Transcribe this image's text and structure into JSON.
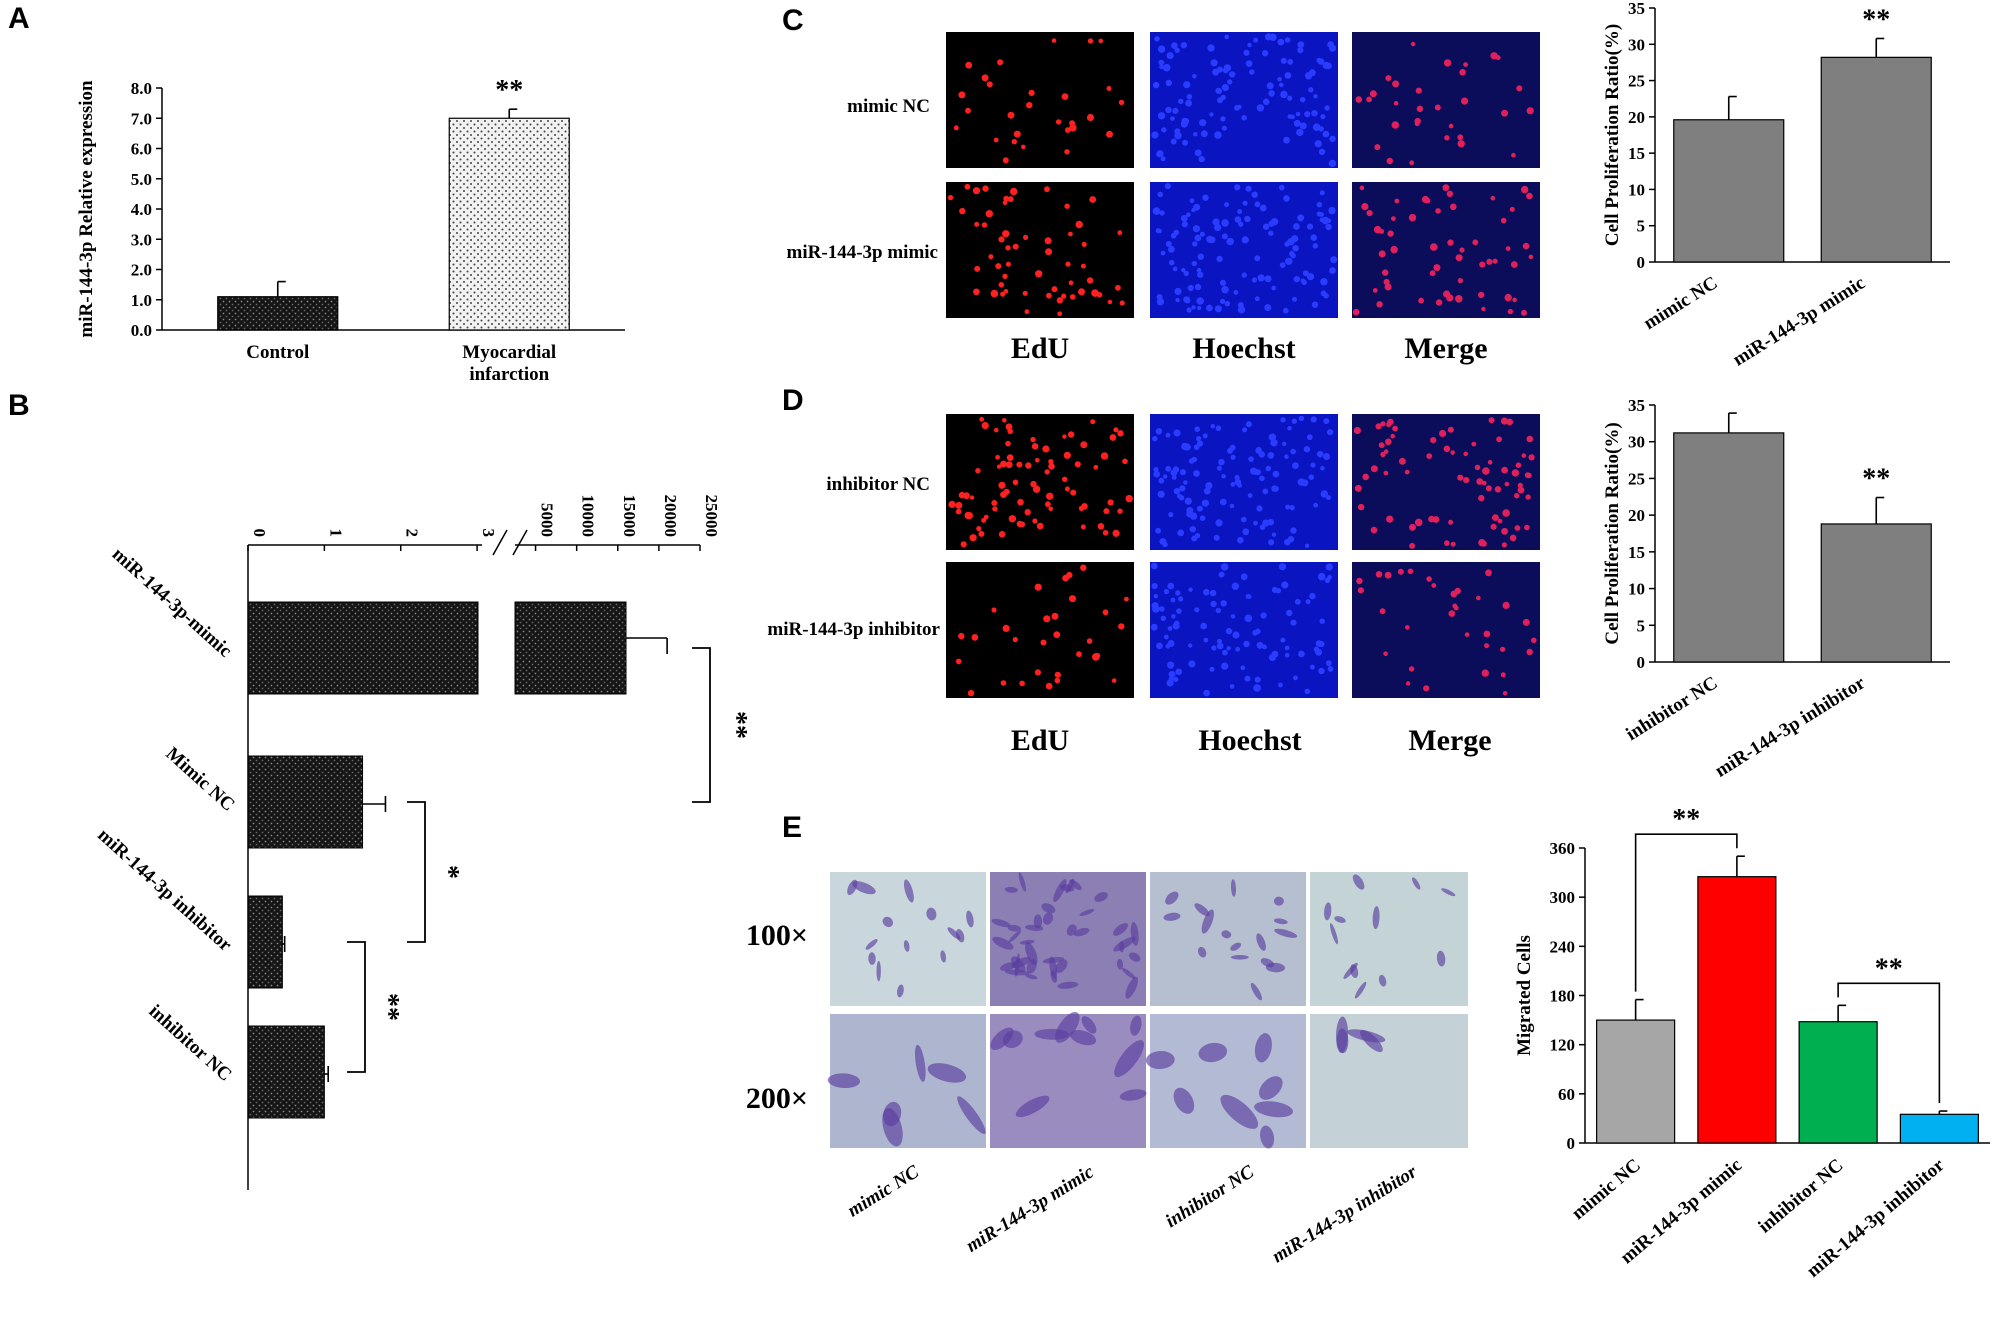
{
  "panels": {
    "A": {
      "label": "A"
    },
    "B": {
      "label": "B"
    },
    "C": {
      "label": "C",
      "row_labels": [
        "mimic  NC",
        "miR-144-3p mimic"
      ],
      "columns": [
        "EdU",
        "Hoechst",
        "Merge"
      ]
    },
    "D": {
      "label": "D",
      "row_labels": [
        "inhibitor NC",
        "miR-144-3p inhibitor"
      ],
      "columns": [
        "EdU",
        "Hoechst",
        "Merge"
      ]
    },
    "E": {
      "label": "E",
      "row_labels": [
        "100×",
        "200×"
      ],
      "columns": [
        "mimic NC",
        "miR-144-3p mimic",
        "inhibitor NC",
        "miR-144-3p inhibitor"
      ]
    }
  },
  "chart_data": [
    {
      "id": "A",
      "type": "bar",
      "categories": [
        "Control",
        "Myocardial infarction"
      ],
      "category_lines": [
        [
          "Control"
        ],
        [
          "Myocardial",
          "infarction"
        ]
      ],
      "values": [
        1.1,
        7.0
      ],
      "errors": [
        0.5,
        0.3
      ],
      "ylabel": "miR-144-3p Relative expression",
      "ylim": [
        0,
        8
      ],
      "yticks": [
        "0.0",
        "1.0",
        "2.0",
        "3.0",
        "4.0",
        "5.0",
        "6.0",
        "7.0",
        "8.0"
      ],
      "bar_colors": [
        "#1c1c1c",
        "#f2f2f2"
      ],
      "annotations": [
        {
          "text": "**",
          "category": "Myocardial infarction"
        }
      ]
    },
    {
      "id": "B",
      "type": "bar",
      "orientation": "horizontal, broken axis",
      "categories": [
        "miR-144-3p-mimic",
        "Mimic NC",
        "miR-144-3p inhibitor",
        "inhibitor NC"
      ],
      "values": [
        16000,
        1.5,
        0.45,
        1.0
      ],
      "errors": [
        5000,
        0.3,
        0.03,
        0.05
      ],
      "axis_low_ticks": [
        "0",
        "1",
        "2",
        "3"
      ],
      "axis_high_ticks": [
        "5000",
        "10000",
        "15000",
        "20000",
        "25000"
      ],
      "xlim_low": [
        0,
        3.3
      ],
      "xlim_high": [
        2500,
        25000
      ],
      "bar_color": "#1c1c1c",
      "brackets": [
        {
          "from": "miR-144-3p-mimic",
          "to": "Mimic NC",
          "text": "**"
        },
        {
          "from": "Mimic NC",
          "to": "miR-144-3p inhibitor",
          "text": "*"
        },
        {
          "from": "miR-144-3p inhibitor",
          "to": "inhibitor NC",
          "text": "**"
        }
      ]
    },
    {
      "id": "C",
      "type": "bar",
      "categories": [
        "mimic NC",
        "miR-144-3p mimic"
      ],
      "values": [
        19.6,
        28.2
      ],
      "errors": [
        3.2,
        2.6
      ],
      "ylabel": "Cell Proliferation Ratio(%)",
      "ylim": [
        0,
        35
      ],
      "yticks": [
        "0",
        "5",
        "10",
        "15",
        "20",
        "25",
        "30",
        "35"
      ],
      "bar_color": "#7f7f7f",
      "annotations": [
        {
          "text": "**",
          "category": "miR-144-3p mimic"
        }
      ]
    },
    {
      "id": "D",
      "type": "bar",
      "categories": [
        "inhibitor NC",
        "miR-144-3p inhibitor"
      ],
      "values": [
        31.2,
        18.8
      ],
      "errors": [
        2.7,
        3.6
      ],
      "ylabel": "Cell Proliferation Ratio(%)",
      "ylim": [
        0,
        35
      ],
      "yticks": [
        "0",
        "5",
        "10",
        "15",
        "20",
        "25",
        "30",
        "35"
      ],
      "bar_color": "#7f7f7f",
      "annotations": [
        {
          "text": "**",
          "category": "miR-144-3p inhibitor"
        }
      ]
    },
    {
      "id": "E",
      "type": "bar",
      "categories": [
        "mimic NC",
        "miR-144-3p mimic",
        "inhibitor NC",
        "miR-144-3p inhibitor"
      ],
      "values": [
        150,
        325,
        148,
        35
      ],
      "errors": [
        25,
        25,
        20,
        4
      ],
      "ylabel": "Migrated Cells",
      "ylim": [
        0,
        360
      ],
      "yticks": [
        "0",
        "60",
        "120",
        "180",
        "240",
        "300",
        "360"
      ],
      "bar_colors": [
        "#a6a6a6",
        "#ff0000",
        "#00b050",
        "#00b0f0"
      ],
      "brackets": [
        {
          "from": "mimic NC",
          "to": "miR-144-3p mimic",
          "text": "**"
        },
        {
          "from": "inhibitor NC",
          "to": "miR-144-3p inhibitor",
          "text": "**"
        }
      ]
    }
  ]
}
